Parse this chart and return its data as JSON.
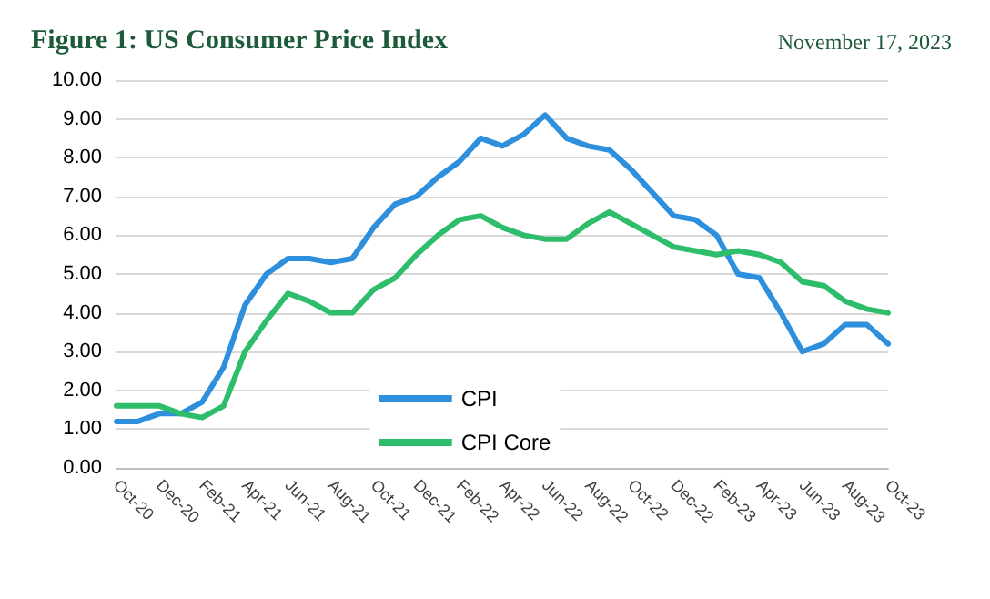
{
  "chart_data": {
    "type": "line",
    "title": "Figure 1: US Consumer Price Index",
    "subtitle": "November 17, 2023",
    "categories": [
      "Oct-20",
      null,
      "Dec-20",
      null,
      "Feb-21",
      null,
      "Apr-21",
      null,
      "Jun-21",
      null,
      "Aug-21",
      null,
      "Oct-21",
      null,
      "Dec-21",
      null,
      "Feb-22",
      null,
      "Apr-22",
      null,
      "Jun-22",
      null,
      "Aug-22",
      null,
      "Oct-22",
      null,
      "Dec-22",
      null,
      "Feb-23",
      null,
      "Apr-23",
      null,
      "Jun-23",
      null,
      "Aug-23",
      null,
      "Oct-23"
    ],
    "series": [
      {
        "name": "CPI",
        "color": "#2e8fdc",
        "values": [
          1.2,
          1.2,
          1.4,
          1.4,
          1.7,
          2.6,
          4.2,
          5.0,
          5.4,
          5.4,
          5.3,
          5.4,
          6.2,
          6.8,
          7.0,
          7.5,
          7.9,
          8.5,
          8.3,
          8.6,
          9.1,
          8.5,
          8.3,
          8.2,
          7.7,
          7.1,
          6.5,
          6.4,
          6.0,
          5.0,
          4.9,
          4.0,
          3.0,
          3.2,
          3.7,
          3.7,
          3.2
        ]
      },
      {
        "name": "CPI Core",
        "color": "#2dbd6b",
        "values": [
          1.6,
          1.6,
          1.6,
          1.4,
          1.3,
          1.6,
          3.0,
          3.8,
          4.5,
          4.3,
          4.0,
          4.0,
          4.6,
          4.9,
          5.5,
          6.0,
          6.4,
          6.5,
          6.2,
          6.0,
          5.9,
          5.9,
          6.3,
          6.6,
          6.3,
          6.0,
          5.7,
          5.6,
          5.5,
          5.6,
          5.5,
          5.3,
          4.8,
          4.7,
          4.3,
          4.1,
          4.0
        ]
      }
    ],
    "ylim": [
      0,
      10
    ],
    "yticks": [
      {
        "value": 0,
        "label": "0.00"
      },
      {
        "value": 1,
        "label": "1.00"
      },
      {
        "value": 2,
        "label": "2.00"
      },
      {
        "value": 3,
        "label": "3.00"
      },
      {
        "value": 4,
        "label": "4.00"
      },
      {
        "value": 5,
        "label": "5.00"
      },
      {
        "value": 6,
        "label": "6.00"
      },
      {
        "value": 7,
        "label": "7.00"
      },
      {
        "value": 8,
        "label": "8.00"
      },
      {
        "value": 9,
        "label": "9.00"
      },
      {
        "value": 10,
        "label": "10.00"
      }
    ],
    "grid": "y",
    "legend": "bottom",
    "marker": "none",
    "line_style": "solid"
  }
}
